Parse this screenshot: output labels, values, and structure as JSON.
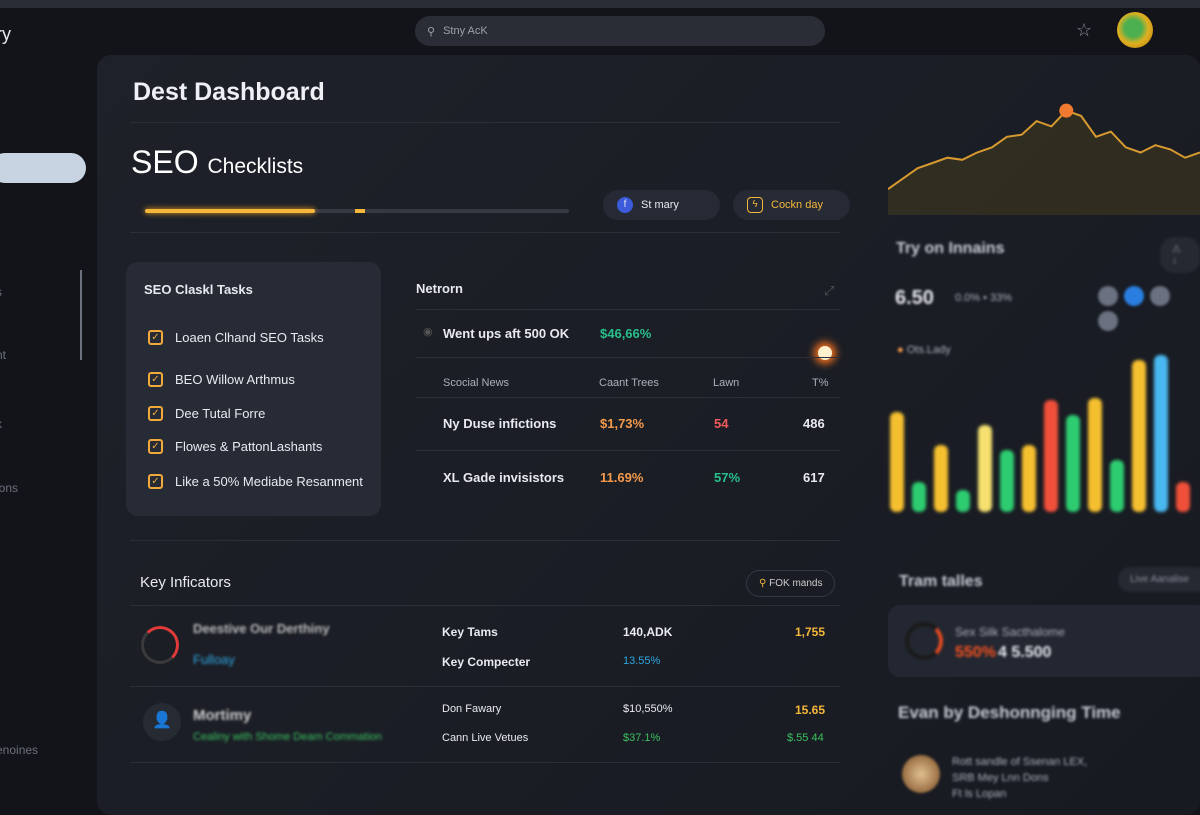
{
  "app": {
    "brand": "ry",
    "search_placeholder": "Stny AcK"
  },
  "sidebar": {
    "items": [
      "s",
      "nt",
      "k",
      "ions",
      "enoines"
    ]
  },
  "header": {
    "title": "Dest Dashboard",
    "section_big": "SEO",
    "section_small": "Checklists",
    "progress_percent": 40
  },
  "pills": [
    {
      "label": "St mary",
      "icon": "facebook-icon",
      "color": "#3b5bdb"
    },
    {
      "label": "Cockn day",
      "icon": "lightning-icon",
      "color": "#f5b73a"
    }
  ],
  "checklist": {
    "title": "SEO Claskl Tasks",
    "items": [
      "Loaen Clhand SEO Tasks",
      "BEO Willow Arthmus",
      "Dee Tutal Forre",
      "Flowes & PattonLashants",
      "Like a 50% Mediabe Resanment"
    ]
  },
  "netron": {
    "title": "Netrorn",
    "highlight": {
      "label": "Went ups aft 500 OK",
      "value": "$46,66%"
    },
    "columns": [
      "Scocial News",
      "Caant Trees",
      "Lawn",
      "T%"
    ],
    "rows": [
      {
        "name": "Ny Duse infictions",
        "c1": "$1,73%",
        "c2": "54",
        "c3": "486"
      },
      {
        "name": "XL Gade invisistors",
        "c1": "11.69%",
        "c2": "57%",
        "c3": "617"
      }
    ]
  },
  "key_indicators": {
    "title": "Key Inficators",
    "button": "FOK mands",
    "rows": [
      {
        "title": "Deestive Our Derthiny",
        "sub": "Fulloay",
        "l1": "Key Tams",
        "v1": "140,ADK",
        "r1": "1,755",
        "l2": "Key Compecter",
        "v2": "13.55%",
        "r2": ""
      },
      {
        "title": "Mortimy",
        "sub": "Cealiny with Shome Deam Commation",
        "l1": "Don Fawary",
        "v1": "$10,550%",
        "r1": "15.65",
        "l2": "Cann Live Vetues",
        "v2": "$37.1%",
        "r2": "$.55 44"
      }
    ]
  },
  "right": {
    "title": "Try on Innains",
    "metric": "6.50",
    "metric_sub": "0.0% • 33%",
    "legend": "Ots.Lady",
    "trend_title": "Tram talles",
    "trend_btn": "Live Aanalise",
    "trend_card": {
      "title": "Sex Silk Sacthalome",
      "pct": "550%",
      "value": "4 5.500"
    },
    "time_title": "Evan by Deshonnging Time",
    "time_item": [
      "Rott sandle of Ssenan LEX,",
      "SRB Mey Lnn Dons",
      "Ft ls Lopan"
    ],
    "line_values": [
      20,
      30,
      40,
      45,
      50,
      48,
      55,
      60,
      70,
      72,
      85,
      80,
      95,
      90,
      70,
      75,
      60,
      55,
      62,
      58,
      50,
      55
    ],
    "bars": [
      {
        "value": 100,
        "color": "#f5c030"
      },
      {
        "value": 30,
        "color": "#2ecc71"
      },
      {
        "value": 67,
        "color": "#f5c030"
      },
      {
        "value": 22,
        "color": "#2ecc71"
      },
      {
        "value": 87,
        "color": "#f5e070"
      },
      {
        "value": 62,
        "color": "#2ecc71"
      },
      {
        "value": 67,
        "color": "#f5c030"
      },
      {
        "value": 112,
        "color": "#f0503a"
      },
      {
        "value": 97,
        "color": "#2ecc71"
      },
      {
        "value": 114,
        "color": "#f5c030"
      },
      {
        "value": 52,
        "color": "#2ecc71"
      },
      {
        "value": 152,
        "color": "#f5c030"
      },
      {
        "value": 157,
        "color": "#4ab8f0"
      },
      {
        "value": 30,
        "color": "#f0503a"
      }
    ]
  }
}
